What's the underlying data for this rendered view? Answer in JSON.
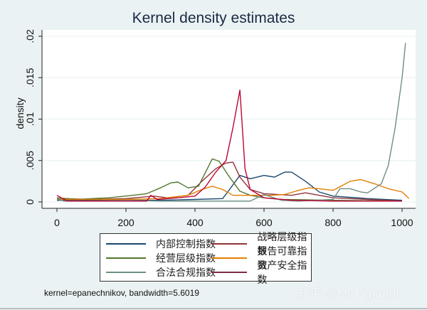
{
  "chart_data": {
    "type": "line",
    "title": "Kernel density estimates",
    "xlabel": "",
    "ylabel": "density",
    "xlim": [
      -30,
      1050
    ],
    "ylim": [
      0,
      0.0205
    ],
    "xticks": [
      0,
      200,
      400,
      600,
      800,
      1000
    ],
    "yticks": [
      0,
      0.005,
      0.01,
      0.015,
      0.02
    ],
    "ytick_labels": [
      "0",
      ".005",
      ".01",
      ".015",
      ".02"
    ],
    "grid": true,
    "legend_position": "bottom",
    "note": "kernel=epanechnikov, bandwidth=5.6019",
    "series": [
      {
        "name": "内部控制指数",
        "color": "#1a476f",
        "x": [
          0,
          100,
          200,
          300,
          400,
          480,
          500,
          530,
          560,
          600,
          630,
          660,
          680,
          720,
          760,
          800,
          900,
          1000
        ],
        "y": [
          0.0002,
          0.0002,
          0.0002,
          0.0002,
          0.0003,
          0.0004,
          0.0015,
          0.0032,
          0.0028,
          0.0032,
          0.003,
          0.0036,
          0.0036,
          0.0025,
          0.0012,
          0.0007,
          0.0004,
          0.0002
        ]
      },
      {
        "name": "战略层级指数",
        "color": "#90353b",
        "x": [
          0,
          20,
          100,
          200,
          280,
          320,
          380,
          420,
          460,
          490,
          510,
          530,
          560,
          600,
          680,
          720,
          760,
          800,
          900,
          1000
        ],
        "y": [
          0.0005,
          0.0004,
          0.0003,
          0.0004,
          0.0007,
          0.0005,
          0.0008,
          0.0025,
          0.004,
          0.0047,
          0.0048,
          0.003,
          0.0015,
          0.001,
          0.0008,
          0.0011,
          0.0008,
          0.0005,
          0.0003,
          0.0001
        ]
      },
      {
        "name": "经营层级指数",
        "color": "#55752f",
        "x": [
          0,
          30,
          60,
          100,
          150,
          220,
          260,
          300,
          330,
          350,
          380,
          410,
          450,
          470,
          500,
          530,
          560,
          600,
          650,
          800,
          1000
        ],
        "y": [
          0.0005,
          0.0004,
          0.0003,
          0.0004,
          0.0005,
          0.0008,
          0.001,
          0.0017,
          0.0023,
          0.0024,
          0.0017,
          0.0019,
          0.0052,
          0.0049,
          0.003,
          0.0013,
          0.0008,
          0.0005,
          0.0003,
          0.0002,
          0.0001
        ]
      },
      {
        "name": "报告可靠指数",
        "color": "#e37e00",
        "x": [
          0,
          100,
          200,
          300,
          380,
          420,
          450,
          480,
          510,
          560,
          620,
          660,
          700,
          730,
          760,
          800,
          850,
          880,
          920,
          960,
          1000,
          1020
        ],
        "y": [
          0.0003,
          0.0003,
          0.0003,
          0.0004,
          0.0008,
          0.0015,
          0.0019,
          0.0015,
          0.0008,
          0.0008,
          0.0008,
          0.0009,
          0.0014,
          0.0017,
          0.0016,
          0.0014,
          0.0025,
          0.0027,
          0.0022,
          0.0016,
          0.0012,
          0.0004
        ]
      },
      {
        "name": "合法合规指数",
        "color": "#6e8e84",
        "x": [
          0,
          20,
          100,
          200,
          300,
          400,
          500,
          560,
          600,
          650,
          700,
          800,
          820,
          850,
          880,
          900,
          940,
          960,
          980,
          1000,
          1010
        ],
        "y": [
          0.0004,
          0.0001,
          0.0001,
          0.0002,
          0.0001,
          0.0001,
          0.0001,
          0.0001,
          0.0009,
          0.0002,
          0.0001,
          0.0003,
          0.0016,
          0.0016,
          0.0012,
          0.0011,
          0.0022,
          0.0044,
          0.009,
          0.015,
          0.0192
        ]
      },
      {
        "name": "资产安全指数",
        "color": "#c10534",
        "x": [
          0,
          30,
          100,
          200,
          260,
          272,
          290,
          350,
          400,
          430,
          460,
          490,
          510,
          530,
          545,
          560,
          600,
          680,
          800,
          1000
        ],
        "y": [
          0.0008,
          0.0001,
          0.0001,
          0.0001,
          0.0001,
          0.0008,
          0.0003,
          0.0005,
          0.0007,
          0.0018,
          0.0036,
          0.005,
          0.009,
          0.0135,
          0.004,
          0.0015,
          0.0005,
          0.0002,
          0.0001,
          0.0001
        ]
      }
    ]
  },
  "legend": {
    "items": [
      {
        "label": "内部控制指数",
        "color": "#1a476f"
      },
      {
        "label": "战略层级指数",
        "color": "#90353b"
      },
      {
        "label": "经营层级指数",
        "color": "#55752f"
      },
      {
        "label": "报告可靠指数",
        "color": "#e37e00"
      },
      {
        "label": "合法合规指数",
        "color": "#6e8e84"
      },
      {
        "label": "资产安全指数",
        "color": "#c10534"
      }
    ]
  },
  "watermark": "知乎 @Mr Figurant"
}
